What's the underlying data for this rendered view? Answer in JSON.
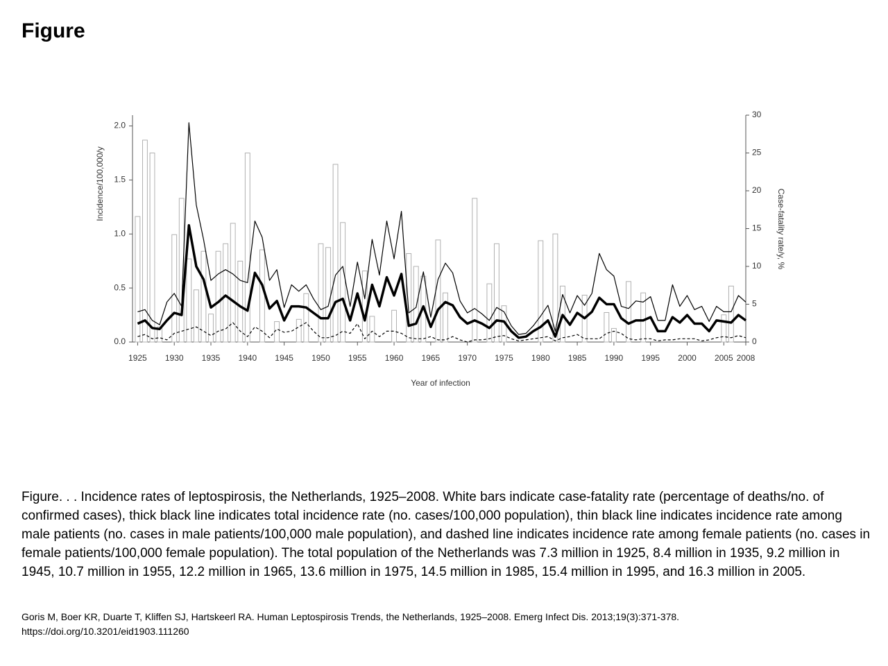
{
  "title": "Figure",
  "chart_data": {
    "type": "combo",
    "x": [
      1925,
      1926,
      1927,
      1928,
      1929,
      1930,
      1931,
      1932,
      1933,
      1934,
      1935,
      1936,
      1937,
      1938,
      1939,
      1940,
      1941,
      1942,
      1943,
      1944,
      1945,
      1946,
      1947,
      1948,
      1949,
      1950,
      1951,
      1952,
      1953,
      1954,
      1955,
      1956,
      1957,
      1958,
      1959,
      1960,
      1961,
      1962,
      1963,
      1964,
      1965,
      1966,
      1967,
      1968,
      1969,
      1970,
      1971,
      1972,
      1973,
      1974,
      1975,
      1976,
      1977,
      1978,
      1979,
      1980,
      1981,
      1982,
      1983,
      1984,
      1985,
      1986,
      1987,
      1988,
      1989,
      1990,
      1991,
      1992,
      1993,
      1994,
      1995,
      1996,
      1997,
      1998,
      1999,
      2000,
      2001,
      2002,
      2003,
      2004,
      2005,
      2006,
      2007,
      2008
    ],
    "series": [
      {
        "type": "bar",
        "axis": "y2",
        "color": "#ffffff",
        "edge": "#b0b0b0",
        "values": [
          16.6,
          26.7,
          25,
          2,
          0,
          14.2,
          19,
          11,
          6.9,
          12,
          3.7,
          12,
          13,
          15.7,
          10.7,
          25,
          0,
          12.2,
          0,
          2.7,
          0,
          0,
          3,
          6.4,
          0,
          13,
          12.5,
          23.5,
          15.8,
          0,
          0,
          9.4,
          3.4,
          0,
          0,
          4.2,
          0,
          11.7,
          10,
          8.7,
          0,
          13.5,
          6.5,
          0,
          0,
          0,
          19,
          0,
          7.7,
          13,
          4.8,
          0,
          0,
          0,
          0,
          13.4,
          0,
          14.3,
          7.4,
          0,
          0,
          6.2,
          0,
          0,
          3.9,
          1.8,
          0,
          8,
          0,
          6.5,
          0,
          0,
          0,
          0,
          0,
          0,
          0,
          0,
          0,
          0,
          3.6,
          7.4,
          0,
          0
        ]
      },
      {
        "type": "line",
        "color": "#000000",
        "weight": "thick",
        "values": [
          0.17,
          0.2,
          0.13,
          0.12,
          0.2,
          0.27,
          0.25,
          1.08,
          0.7,
          0.58,
          0.32,
          0.37,
          0.43,
          0.38,
          0.33,
          0.29,
          0.64,
          0.53,
          0.31,
          0.38,
          0.2,
          0.33,
          0.33,
          0.32,
          0.27,
          0.22,
          0.22,
          0.37,
          0.4,
          0.2,
          0.45,
          0.2,
          0.53,
          0.33,
          0.6,
          0.43,
          0.63,
          0.15,
          0.17,
          0.33,
          0.14,
          0.3,
          0.37,
          0.34,
          0.23,
          0.17,
          0.2,
          0.17,
          0.13,
          0.2,
          0.19,
          0.1,
          0.04,
          0.05,
          0.1,
          0.14,
          0.2,
          0.05,
          0.25,
          0.16,
          0.27,
          0.22,
          0.28,
          0.41,
          0.35,
          0.35,
          0.22,
          0.17,
          0.2,
          0.2,
          0.23,
          0.1,
          0.1,
          0.23,
          0.18,
          0.25,
          0.17,
          0.17,
          0.1,
          0.2,
          0.19,
          0.18,
          0.25,
          0.2
        ]
      },
      {
        "type": "line",
        "color": "#000000",
        "weight": "thin",
        "values": [
          0.28,
          0.3,
          0.2,
          0.16,
          0.37,
          0.45,
          0.33,
          2.03,
          1.27,
          0.95,
          0.57,
          0.63,
          0.67,
          0.63,
          0.57,
          0.55,
          1.12,
          0.97,
          0.57,
          0.67,
          0.32,
          0.53,
          0.47,
          0.53,
          0.4,
          0.3,
          0.33,
          0.62,
          0.7,
          0.33,
          0.74,
          0.4,
          0.95,
          0.62,
          1.12,
          0.77,
          1.21,
          0.27,
          0.32,
          0.65,
          0.23,
          0.58,
          0.73,
          0.64,
          0.38,
          0.27,
          0.31,
          0.26,
          0.2,
          0.32,
          0.28,
          0.15,
          0.07,
          0.08,
          0.15,
          0.24,
          0.34,
          0.1,
          0.44,
          0.27,
          0.43,
          0.34,
          0.45,
          0.82,
          0.67,
          0.61,
          0.33,
          0.31,
          0.38,
          0.37,
          0.42,
          0.2,
          0.2,
          0.53,
          0.33,
          0.43,
          0.3,
          0.33,
          0.19,
          0.33,
          0.28,
          0.28,
          0.43,
          0.37
        ]
      },
      {
        "type": "line",
        "color": "#000000",
        "weight": "thin",
        "style": "dashed",
        "values": [
          0.05,
          0.07,
          0.03,
          0.04,
          0.02,
          0.08,
          0.1,
          0.12,
          0.14,
          0.1,
          0.06,
          0.1,
          0.12,
          0.18,
          0.1,
          0.05,
          0.14,
          0.1,
          0.04,
          0.12,
          0.09,
          0.1,
          0.14,
          0.18,
          0.1,
          0.04,
          0.04,
          0.06,
          0.1,
          0.08,
          0.17,
          0.03,
          0.1,
          0.05,
          0.1,
          0.1,
          0.08,
          0.04,
          0.03,
          0.03,
          0.05,
          0.02,
          0.02,
          0.05,
          0.02,
          0,
          0.02,
          0.02,
          0.03,
          0.05,
          0.06,
          0.03,
          0.01,
          0.02,
          0.03,
          0.04,
          0.05,
          0.01,
          0.04,
          0.05,
          0.07,
          0.03,
          0.03,
          0.03,
          0.08,
          0.1,
          0.08,
          0.03,
          0.02,
          0.03,
          0.03,
          0.01,
          0.02,
          0.02,
          0.03,
          0.03,
          0.03,
          0.01,
          0.02,
          0.04,
          0.05,
          0.04,
          0.06,
          0.04
        ]
      }
    ],
    "xlim": [
      1924.3,
      2008
    ],
    "xticks": [
      1925,
      1930,
      1935,
      1940,
      1945,
      1950,
      1955,
      1960,
      1965,
      1970,
      1975,
      1980,
      1985,
      1990,
      1995,
      2000,
      2005,
      2008
    ],
    "ylim": [
      0,
      2.1
    ],
    "yticks": [
      {
        "value": 0,
        "label": "0.0"
      },
      0.5,
      {
        "value": 1,
        "label": "1.0"
      },
      1.5,
      {
        "value": 2,
        "label": "2.0"
      }
    ],
    "y2lim": [
      0,
      30
    ],
    "y2ticks": [
      0,
      5,
      10,
      15,
      20,
      25,
      30
    ],
    "xlabel": "Year of infection",
    "ylabel": "Incidence/100,000/y",
    "y2label": "Case-fatality rate/y, %",
    "grid": false
  },
  "caption": "Figure. . . Incidence rates of leptospirosis, the Netherlands, 1925–2008. White bars indicate case-fatality rate (percentage of deaths/no. of confirmed cases), thick black line indicates total incidence rate (no. cases/100,000 population), thin black line indicates incidence rate among male patients (no. cases in male patients/100,000 male population), and dashed line indicates incidence rate among female patients (no. cases in female patients/100,000 female population). The total population of the Netherlands was 7.3 million in 1925, 8.4 million in 1935, 9.2 million in 1945, 10.7 million in 1955, 12.2 million in 1965, 13.6 million in 1975, 14.5 million in 1985, 15.4 million in 1995, and 16.3 million  in 2005.",
  "citation": "Goris M, Boer KR, Duarte T, Kliffen SJ, Hartskeerl RA. Human Leptospirosis Trends, the Netherlands, 1925–2008. Emerg Infect Dis. 2013;19(3):371-378.",
  "doi": "https://doi.org/10.3201/eid1903.111260"
}
